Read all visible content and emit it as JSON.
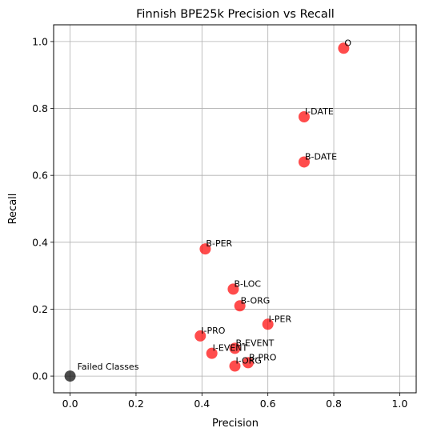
{
  "chart_data": {
    "type": "scatter",
    "title": "Finnish BPE25k Precision vs Recall",
    "xlabel": "Precision",
    "ylabel": "Recall",
    "xlim": [
      -0.05,
      1.05
    ],
    "ylim": [
      -0.05,
      1.05
    ],
    "xticks": [
      0.0,
      0.2,
      0.4,
      0.6,
      0.8,
      1.0
    ],
    "yticks": [
      0.0,
      0.2,
      0.4,
      0.6,
      0.8,
      1.0
    ],
    "xtick_labels": [
      "0.0",
      "0.2",
      "0.4",
      "0.6",
      "0.8",
      "1.0"
    ],
    "ytick_labels": [
      "0.0",
      "0.2",
      "0.4",
      "0.6",
      "0.8",
      "1.0"
    ],
    "grid": true,
    "point_color": "#ff0000",
    "failed_color": "#000000",
    "points": [
      {
        "label": "O",
        "x": 0.83,
        "y": 0.98
      },
      {
        "label": "I-DATE",
        "x": 0.71,
        "y": 0.775
      },
      {
        "label": "B-DATE",
        "x": 0.71,
        "y": 0.64
      },
      {
        "label": "B-PER",
        "x": 0.41,
        "y": 0.38
      },
      {
        "label": "B-LOC",
        "x": 0.495,
        "y": 0.26
      },
      {
        "label": "B-ORG",
        "x": 0.515,
        "y": 0.21
      },
      {
        "label": "I-PER",
        "x": 0.6,
        "y": 0.155
      },
      {
        "label": "I-PRO",
        "x": 0.395,
        "y": 0.12
      },
      {
        "label": "B-EVENT",
        "x": 0.5,
        "y": 0.083
      },
      {
        "label": "I-EVENT",
        "x": 0.43,
        "y": 0.068
      },
      {
        "label": "B-PRO",
        "x": 0.54,
        "y": 0.04
      },
      {
        "label": "I-ORG",
        "x": 0.5,
        "y": 0.03
      }
    ],
    "failed": {
      "label": "Failed Classes",
      "x": 0.0,
      "y": 0.0
    }
  }
}
